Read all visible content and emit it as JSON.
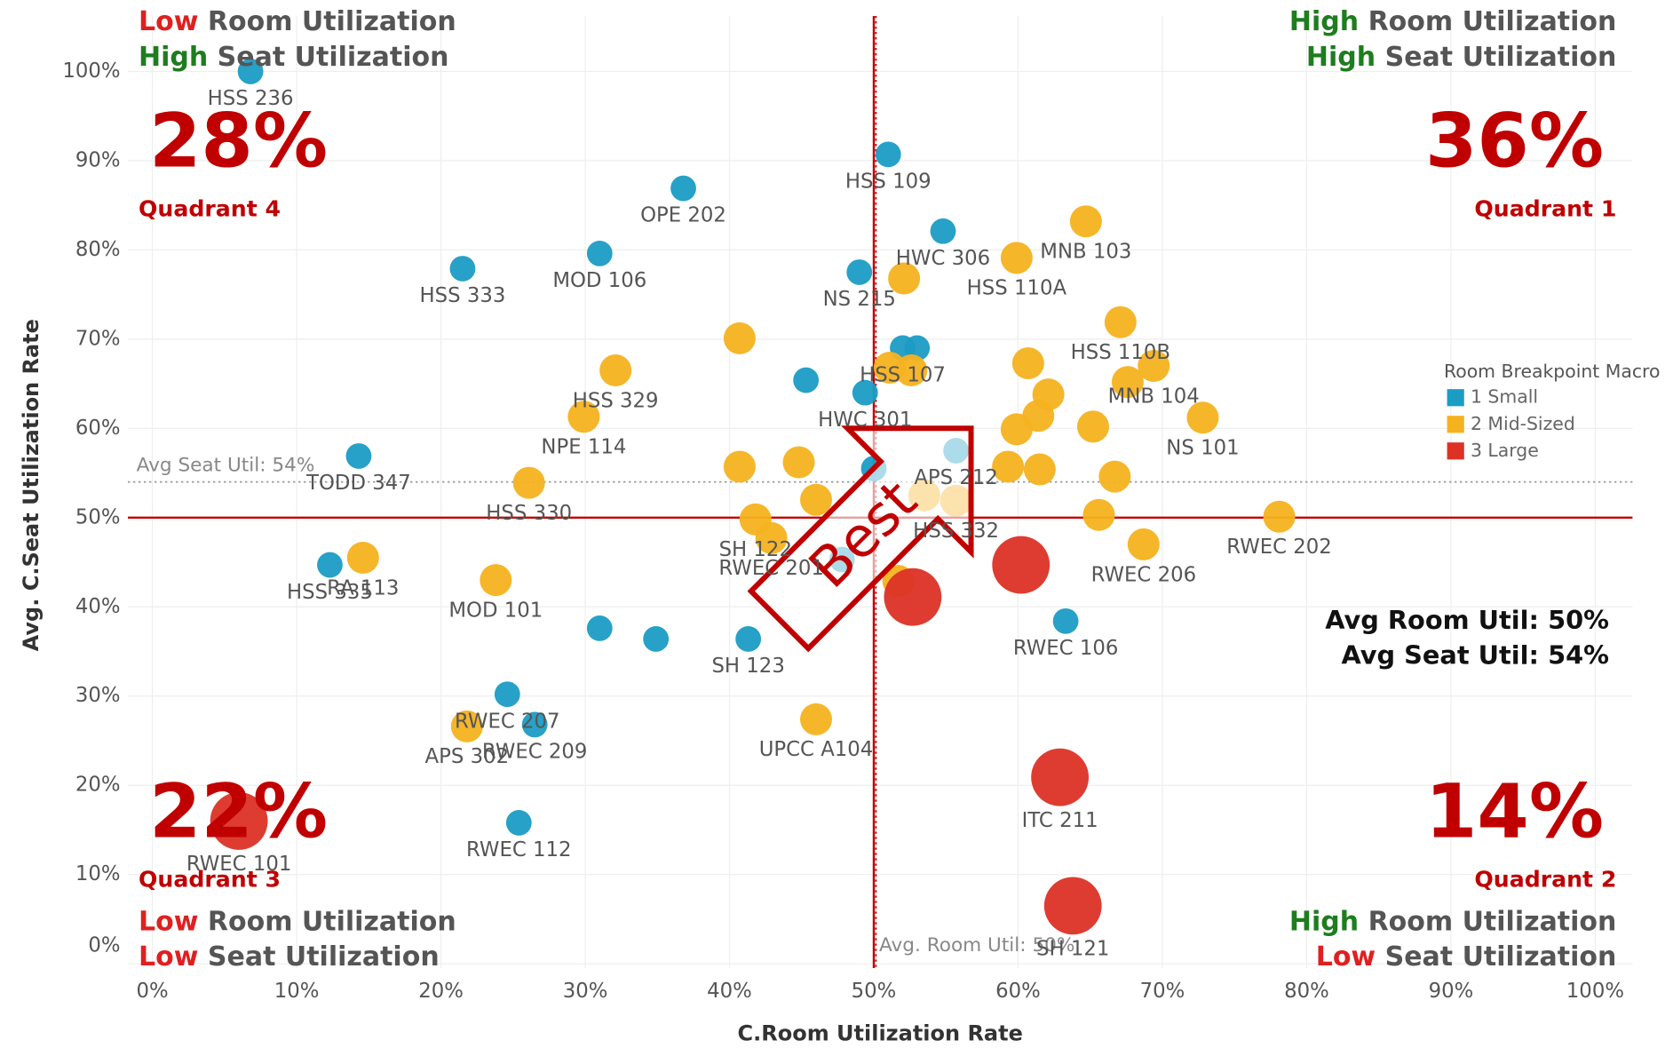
{
  "chart_data": {
    "type": "scatter",
    "x_label": "C.Room Utilization Rate",
    "y_label": "Avg. C.Seat Utilization Rate",
    "xlim": [
      0,
      100
    ],
    "ylim": [
      0,
      100
    ],
    "xticks": [
      {
        "value": 0,
        "label": "0%"
      },
      {
        "value": 10,
        "label": "10%"
      },
      {
        "value": 20,
        "label": "20%"
      },
      {
        "value": 30,
        "label": "30%"
      },
      {
        "value": 40,
        "label": "40%"
      },
      {
        "value": 50,
        "label": "50%"
      },
      {
        "value": 60,
        "label": "60%"
      },
      {
        "value": 70,
        "label": "70%"
      },
      {
        "value": 80,
        "label": "80%"
      },
      {
        "value": 90,
        "label": "90%"
      },
      {
        "value": 100,
        "label": "100%"
      }
    ],
    "yticks": [
      {
        "value": 0,
        "label": "0%"
      },
      {
        "value": 10,
        "label": "10%"
      },
      {
        "value": 20,
        "label": "20%"
      },
      {
        "value": 30,
        "label": "30%"
      },
      {
        "value": 40,
        "label": "40%"
      },
      {
        "value": 50,
        "label": "50%"
      },
      {
        "value": 60,
        "label": "60%"
      },
      {
        "value": 70,
        "label": "70%"
      },
      {
        "value": 80,
        "label": "80%"
      },
      {
        "value": 90,
        "label": "90%"
      },
      {
        "value": 100,
        "label": "100%"
      }
    ],
    "grid": true,
    "legend_title": "Room Breakpoint Macro",
    "series": [
      {
        "name": "1 Small",
        "color": "#1b9cc4",
        "size": "small",
        "x": [
          6.8,
          36.8,
          51.0,
          54.8,
          49.0,
          31.0,
          21.5,
          52.0,
          53.0,
          45.3,
          49.4,
          55.7,
          14.3,
          47.8,
          12.3,
          31.0,
          34.9,
          41.3,
          63.3,
          24.6,
          26.5,
          25.4,
          50.0
        ],
        "y": [
          100.0,
          86.9,
          90.7,
          82.1,
          77.5,
          79.6,
          77.9,
          69.0,
          69.0,
          65.4,
          64.0,
          57.5,
          56.9,
          45.3,
          44.7,
          37.6,
          36.4,
          36.4,
          38.4,
          30.2,
          26.8,
          15.8,
          55.5
        ],
        "labels": [
          "HSS 236",
          "OPE 202",
          "HSS 109",
          "HWC 306",
          "NS 215",
          "MOD 106",
          "HSS 333",
          "HSS 107",
          null,
          null,
          "HWC 301",
          "APS 212",
          "TODD 347",
          null,
          "HSS 335",
          null,
          null,
          "SH 123",
          "RWEC 106",
          "RWEC 207",
          "RWEC 209",
          "RWEC 112",
          null
        ]
      },
      {
        "name": "2 Mid-Sized",
        "color": "#f5b21f",
        "size": "mid",
        "x": [
          64.7,
          59.9,
          52.1,
          67.1,
          69.4,
          32.1,
          40.7,
          51.1,
          52.6,
          72.8,
          60.7,
          62.1,
          61.4,
          59.9,
          65.2,
          67.6,
          59.3,
          61.5,
          66.7,
          29.9,
          26.1,
          41.8,
          40.7,
          44.8,
          78.1,
          68.7,
          65.6,
          55.7,
          53.5,
          51.7,
          42.9,
          46.0,
          14.6,
          23.8,
          21.8,
          46.0
        ],
        "y": [
          83.2,
          79.1,
          76.8,
          71.9,
          67.0,
          66.5,
          70.1,
          66.8,
          66.5,
          61.2,
          67.3,
          63.8,
          61.4,
          59.9,
          60.2,
          65.2,
          55.7,
          55.4,
          54.6,
          61.3,
          53.9,
          49.8,
          55.7,
          56.2,
          50.1,
          47.0,
          50.3,
          51.9,
          52.5,
          42.9,
          47.7,
          52.0,
          45.5,
          43.0,
          26.6,
          27.4
        ],
        "labels": [
          "MNB 103",
          "HSS 110A",
          null,
          "HSS 110B",
          "MNB 104",
          "HSS 329",
          null,
          null,
          null,
          "NS 101",
          null,
          null,
          null,
          null,
          null,
          null,
          null,
          null,
          null,
          "NPE 114",
          "HSS 330",
          "SH 122",
          null,
          null,
          "RWEC 202",
          "RWEC 206",
          null,
          "HSS 332",
          null,
          null,
          "RWEC 201",
          null,
          "RA 113",
          "MOD 101",
          "APS 302",
          "UPCC A104"
        ]
      },
      {
        "name": "3 Large",
        "color": "#dc3226",
        "size": "large",
        "x": [
          60.2,
          52.7,
          62.9,
          6.0,
          63.8
        ],
        "y": [
          44.7,
          41.1,
          20.9,
          16.0,
          6.5
        ],
        "labels": [
          null,
          null,
          "ITC 211",
          "RWEC 101",
          "SH 121"
        ]
      }
    ],
    "quadrant_lines": {
      "x": 50,
      "y": 50,
      "color": "#c00000"
    },
    "reference_lines": [
      {
        "axis": "y",
        "value": 54,
        "label": "Avg Seat Util:  54%"
      },
      {
        "axis": "x",
        "value": 50,
        "label": "Avg. Room Util:  50%"
      }
    ],
    "summary": [
      "Avg Room Util: 50%",
      "Avg Seat Util: 54%"
    ],
    "best_label": "Best",
    "quadrants": [
      {
        "corner": "top-left",
        "share": "28%",
        "name": "Quadrant 4",
        "room": {
          "level": "Low",
          "color": "#e02020",
          "text": "Room Utilization"
        },
        "seat": {
          "level": "High",
          "color": "#1e7d1e",
          "text": "Seat Utilization"
        }
      },
      {
        "corner": "top-right",
        "share": "36%",
        "name": "Quadrant 1",
        "room": {
          "level": "High",
          "color": "#1e7d1e",
          "text": "Room Utilization"
        },
        "seat": {
          "level": "High",
          "color": "#1e7d1e",
          "text": "Seat Utilization"
        }
      },
      {
        "corner": "bottom-left",
        "share": "22%",
        "name": "Quadrant 3",
        "room": {
          "level": "Low",
          "color": "#e02020",
          "text": "Room Utilization"
        },
        "seat": {
          "level": "Low",
          "color": "#e02020",
          "text": "Seat Utilization"
        }
      },
      {
        "corner": "bottom-right",
        "share": "14%",
        "name": "Quadrant 2",
        "room": {
          "level": "High",
          "color": "#1e7d1e",
          "text": "Room Utilization"
        },
        "seat": {
          "level": "Low",
          "color": "#e02020",
          "text": "Seat Utilization"
        }
      }
    ]
  }
}
